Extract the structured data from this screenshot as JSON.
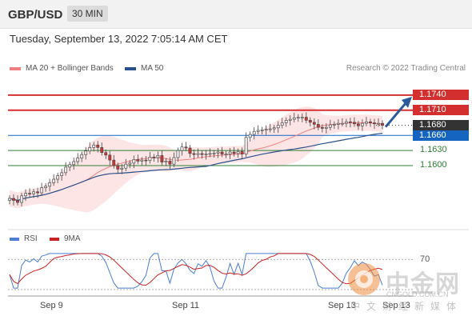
{
  "header": {
    "pair": "GBP/USD",
    "timeframe": "30 MIN"
  },
  "timestamp": "Tuesday, September 13, 2022 7:05:14 AM CET",
  "legend": {
    "ma20": "MA 20 + Bollinger Bands",
    "ma50": "MA 50",
    "credit": "Research © 2022 Trading Central"
  },
  "rsi_legend": {
    "rsi": "RSI",
    "ma": "9MA"
  },
  "colors": {
    "ma20": "#f08080",
    "ma50": "#2b4f8a",
    "resistance": "#d32f2f",
    "support": "#1565c0",
    "target": "#2e7d32",
    "current": "#333333",
    "candle_up": "#e8e8e8",
    "candle_down": "#cc3333",
    "band": "#fde0e0",
    "rsi": "#4a7fd4",
    "rsi_ma": "#cc2222"
  },
  "chart_data": {
    "type": "candlestick",
    "title": "GBP/USD 30 MIN",
    "x_tick_labels": [
      "Sep 9",
      "Sep 11",
      "Sep 13",
      "Sep 13"
    ],
    "y_range": [
      1.15,
      1.177
    ],
    "price_levels": [
      {
        "value": "1.1740",
        "kind": "resistance"
      },
      {
        "value": "1.1710",
        "kind": "resistance"
      },
      {
        "value": "1.1680",
        "kind": "current"
      },
      {
        "value": "1.1660",
        "kind": "support"
      },
      {
        "value": "1.1630",
        "kind": "target"
      },
      {
        "value": "1.1600",
        "kind": "target"
      }
    ],
    "close_series": [
      1.1535,
      1.1531,
      1.1527,
      1.154,
      1.1545,
      1.1544,
      1.1548,
      1.1546,
      1.1556,
      1.1559,
      1.1566,
      1.1573,
      1.158,
      1.1586,
      1.1597,
      1.1602,
      1.1608,
      1.1615,
      1.1622,
      1.1629,
      1.1636,
      1.1641,
      1.1636,
      1.1626,
      1.1621,
      1.1611,
      1.16,
      1.1593,
      1.1595,
      1.1603,
      1.1605,
      1.1612,
      1.1609,
      1.1611,
      1.161,
      1.1617,
      1.1616,
      1.162,
      1.1607,
      1.1609,
      1.1603,
      1.1616,
      1.163,
      1.1637,
      1.1635,
      1.1624,
      1.1622,
      1.1624,
      1.1622,
      1.1623,
      1.1624,
      1.1625,
      1.1627,
      1.1623,
      1.1623,
      1.1627,
      1.1624,
      1.1628,
      1.1623,
      1.1656,
      1.1662,
      1.1668,
      1.167,
      1.1671,
      1.1672,
      1.1673,
      1.1675,
      1.168,
      1.1685,
      1.169,
      1.1692,
      1.1695,
      1.1696,
      1.1696,
      1.169,
      1.1686,
      1.1682,
      1.1676,
      1.1674,
      1.1676,
      1.1681,
      1.1682,
      1.1684,
      1.1684,
      1.1687,
      1.1686,
      1.1683,
      1.1679,
      1.1684,
      1.1687,
      1.1685,
      1.1683,
      1.1684,
      1.168
    ],
    "rsi": {
      "level_label": "70",
      "ma_label": "9MA"
    },
    "projection": "up-arrow toward 1.1740"
  },
  "watermark": {
    "brand": "中金网",
    "url": "CNGOLD.COM.CN",
    "sub": "中文财经新媒体"
  }
}
